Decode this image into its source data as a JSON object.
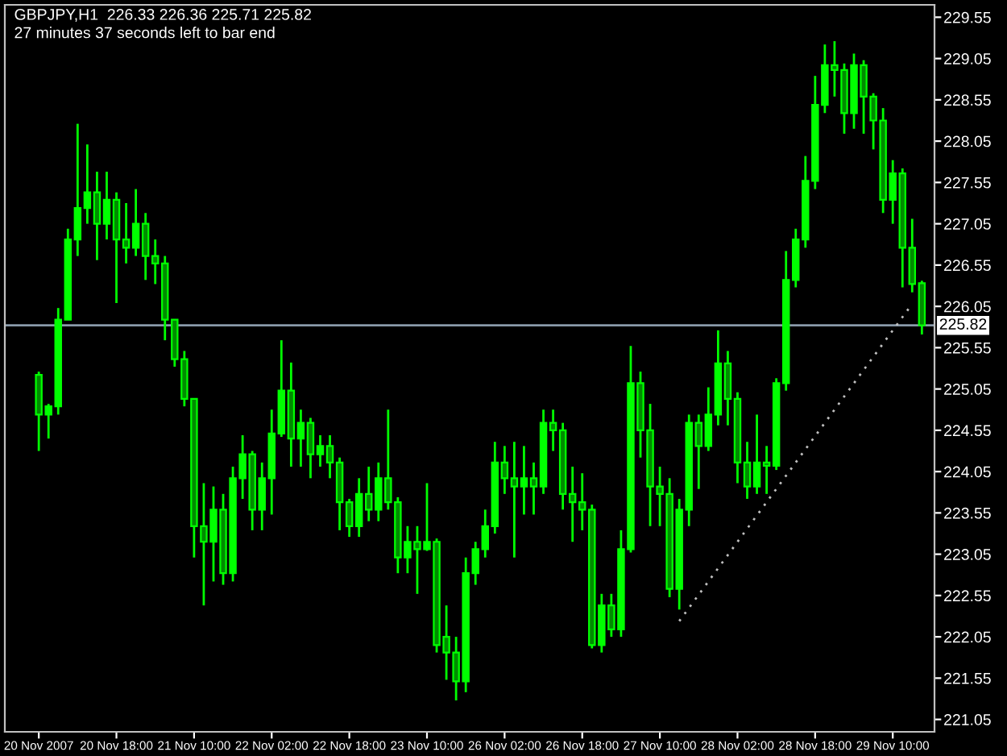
{
  "chart_data": {
    "type": "candlestick",
    "title": "GBPJPY,H1  226.33 226.36 225.71 225.82",
    "subtitle": "27 minutes 37 seconds left to bar end",
    "categories": [
      "20 Nov 2007",
      null,
      null,
      null,
      null,
      null,
      null,
      null,
      "20 Nov 18:00",
      null,
      null,
      null,
      null,
      null,
      null,
      null,
      "21 Nov 10:00",
      null,
      null,
      null,
      null,
      null,
      null,
      null,
      "22 Nov 02:00",
      null,
      null,
      null,
      null,
      null,
      null,
      null,
      "22 Nov 18:00",
      null,
      null,
      null,
      null,
      null,
      null,
      null,
      "23 Nov 10:00",
      null,
      null,
      null,
      null,
      null,
      null,
      null,
      "26 Nov 02:00",
      null,
      null,
      null,
      null,
      null,
      null,
      null,
      "26 Nov 18:00",
      null,
      null,
      null,
      null,
      null,
      null,
      null,
      "27 Nov 10:00",
      null,
      null,
      null,
      null,
      null,
      null,
      null,
      "28 Nov 02:00",
      null,
      null,
      null,
      null,
      null,
      null,
      null,
      "28 Nov 18:00",
      null,
      null,
      null,
      null,
      null,
      null,
      null,
      "29 Nov 10:00",
      null,
      null,
      null
    ],
    "ohlc": [
      [
        225.22,
        225.26,
        224.3,
        224.74
      ],
      [
        224.74,
        224.87,
        224.45,
        224.84
      ],
      [
        224.84,
        226.03,
        224.74,
        225.89
      ],
      [
        225.89,
        226.99,
        225.89,
        226.86
      ],
      [
        226.86,
        228.26,
        226.66,
        227.24
      ],
      [
        227.24,
        228.01,
        227.05,
        227.43
      ],
      [
        227.43,
        227.68,
        226.61,
        227.05
      ],
      [
        227.05,
        227.68,
        226.86,
        227.34
      ],
      [
        227.34,
        227.43,
        226.09,
        226.86
      ],
      [
        226.86,
        227.3,
        226.57,
        226.76
      ],
      [
        226.76,
        227.47,
        226.66,
        227.05
      ],
      [
        227.05,
        227.18,
        226.37,
        226.66
      ],
      [
        226.66,
        226.86,
        226.32,
        226.57
      ],
      [
        226.57,
        226.66,
        225.64,
        225.89
      ],
      [
        225.89,
        225.89,
        225.32,
        225.41
      ],
      [
        225.41,
        225.51,
        224.84,
        224.93
      ],
      [
        224.93,
        224.93,
        223.01,
        223.39
      ],
      [
        223.39,
        223.91,
        222.43,
        223.2
      ],
      [
        223.2,
        223.87,
        222.72,
        223.59
      ],
      [
        223.59,
        223.78,
        222.68,
        222.82
      ],
      [
        222.82,
        224.11,
        222.72,
        223.97
      ],
      [
        223.97,
        224.49,
        223.72,
        224.26
      ],
      [
        224.26,
        224.3,
        223.34,
        223.59
      ],
      [
        223.59,
        224.16,
        223.34,
        223.97
      ],
      [
        223.97,
        224.8,
        223.53,
        224.51
      ],
      [
        224.51,
        225.64,
        224.47,
        225.03
      ],
      [
        225.03,
        225.37,
        224.11,
        224.45
      ],
      [
        224.45,
        224.8,
        224.11,
        224.64
      ],
      [
        224.64,
        224.7,
        223.97,
        224.26
      ],
      [
        224.26,
        224.49,
        224.11,
        224.36
      ],
      [
        224.36,
        224.49,
        223.97,
        224.16
      ],
      [
        224.16,
        224.22,
        223.34,
        223.68
      ],
      [
        223.68,
        223.72,
        223.26,
        223.39
      ],
      [
        223.39,
        223.97,
        223.26,
        223.78
      ],
      [
        223.78,
        224.11,
        223.45,
        223.59
      ],
      [
        223.59,
        224.16,
        223.45,
        223.97
      ],
      [
        223.97,
        224.8,
        223.59,
        223.68
      ],
      [
        223.68,
        223.74,
        222.82,
        223.01
      ],
      [
        223.01,
        223.39,
        222.82,
        223.2
      ],
      [
        223.2,
        223.39,
        222.57,
        223.11
      ],
      [
        223.11,
        223.91,
        223.09,
        223.2
      ],
      [
        223.2,
        223.24,
        221.86,
        221.95
      ],
      [
        222.05,
        222.43,
        221.53,
        221.86
      ],
      [
        221.86,
        222.05,
        221.28,
        221.51
      ],
      [
        221.51,
        223.01,
        221.38,
        222.82
      ],
      [
        222.82,
        223.2,
        222.68,
        223.11
      ],
      [
        223.11,
        223.59,
        223.01,
        223.39
      ],
      [
        223.39,
        224.41,
        223.3,
        224.16
      ],
      [
        224.16,
        224.36,
        223.78,
        223.97
      ],
      [
        223.97,
        224.41,
        223.01,
        223.87
      ],
      [
        223.87,
        224.36,
        223.53,
        223.97
      ],
      [
        223.97,
        224.16,
        223.53,
        223.87
      ],
      [
        223.87,
        224.8,
        223.78,
        224.64
      ],
      [
        224.64,
        224.8,
        224.3,
        224.55
      ],
      [
        224.55,
        224.64,
        223.59,
        223.78
      ],
      [
        223.78,
        224.11,
        223.2,
        223.68
      ],
      [
        223.68,
        224.03,
        223.34,
        223.59
      ],
      [
        223.59,
        223.65,
        221.91,
        221.95
      ],
      [
        221.95,
        222.57,
        221.86,
        222.43
      ],
      [
        222.43,
        222.57,
        222.05,
        222.14
      ],
      [
        222.14,
        223.34,
        222.05,
        223.11
      ],
      [
        223.11,
        225.57,
        223.07,
        225.12
      ],
      [
        225.12,
        225.26,
        224.22,
        224.55
      ],
      [
        224.55,
        224.87,
        223.39,
        223.87
      ],
      [
        223.87,
        224.11,
        223.39,
        223.78
      ],
      [
        223.78,
        223.97,
        222.53,
        222.63
      ],
      [
        222.63,
        223.72,
        222.38,
        223.59
      ],
      [
        223.59,
        224.74,
        223.39,
        224.64
      ],
      [
        224.64,
        224.74,
        223.84,
        224.36
      ],
      [
        224.36,
        225.07,
        224.3,
        224.74
      ],
      [
        224.74,
        225.76,
        224.61,
        225.36
      ],
      [
        225.36,
        225.51,
        224.61,
        224.93
      ],
      [
        224.93,
        225.01,
        223.91,
        224.16
      ],
      [
        224.16,
        224.41,
        223.72,
        223.87
      ],
      [
        223.87,
        224.74,
        223.78,
        224.16
      ],
      [
        224.16,
        224.36,
        223.78,
        224.12
      ],
      [
        224.12,
        225.18,
        224.07,
        225.12
      ],
      [
        225.12,
        226.72,
        225.03,
        226.37
      ],
      [
        226.37,
        226.99,
        226.28,
        226.86
      ],
      [
        226.86,
        227.87,
        226.76,
        227.57
      ],
      [
        227.57,
        228.84,
        227.47,
        228.49
      ],
      [
        228.49,
        229.22,
        228.39,
        228.97
      ],
      [
        228.97,
        229.26,
        228.59,
        228.91
      ],
      [
        228.91,
        228.99,
        228.14,
        228.39
      ],
      [
        228.39,
        229.11,
        228.2,
        228.97
      ],
      [
        228.97,
        229.03,
        228.14,
        228.59
      ],
      [
        228.59,
        228.63,
        227.95,
        228.3
      ],
      [
        228.3,
        228.45,
        227.18,
        227.34
      ],
      [
        227.34,
        227.82,
        227.05,
        227.66
      ],
      [
        227.66,
        227.72,
        226.28,
        226.76
      ],
      [
        226.76,
        227.11,
        226.22,
        226.32
      ],
      [
        226.33,
        226.36,
        225.71,
        225.82
      ]
    ],
    "color": "#00ff00",
    "series": [
      {
        "type": "line",
        "values": [
          null,
          null,
          null,
          null,
          null,
          null,
          null,
          null,
          null,
          null,
          null,
          null,
          null,
          null,
          null,
          null,
          null,
          null,
          null,
          null,
          null,
          null,
          null,
          null,
          null,
          null,
          null,
          null,
          null,
          null,
          null,
          null,
          null,
          null,
          null,
          null,
          null,
          null,
          null,
          null,
          null,
          null,
          null,
          null,
          null,
          null,
          null,
          null,
          null,
          null,
          null,
          null,
          null,
          null,
          null,
          null,
          null,
          null,
          null,
          null,
          null,
          null,
          null,
          null,
          null,
          null,
          222.24,
          null,
          null,
          null,
          null,
          null,
          null,
          null,
          null,
          null,
          null,
          null,
          null,
          null,
          null,
          null,
          null,
          null,
          null,
          null,
          null,
          null,
          null,
          null,
          226.08,
          null
        ],
        "color": "#c0c0c0",
        "line_style": "dotted"
      }
    ],
    "ylim": [
      220.9,
      229.7
    ],
    "yticks": [
      221.05,
      221.55,
      222.05,
      222.55,
      223.05,
      223.55,
      224.05,
      224.55,
      225.05,
      225.55,
      226.05,
      226.55,
      227.05,
      227.55,
      228.05,
      228.55,
      229.05,
      229.55
    ],
    "ref_lines": [
      {
        "axis": "y",
        "value": 225.82,
        "label": "225.82",
        "color": "#8a9aaa",
        "line_style": "solid"
      }
    ],
    "grid": false
  }
}
